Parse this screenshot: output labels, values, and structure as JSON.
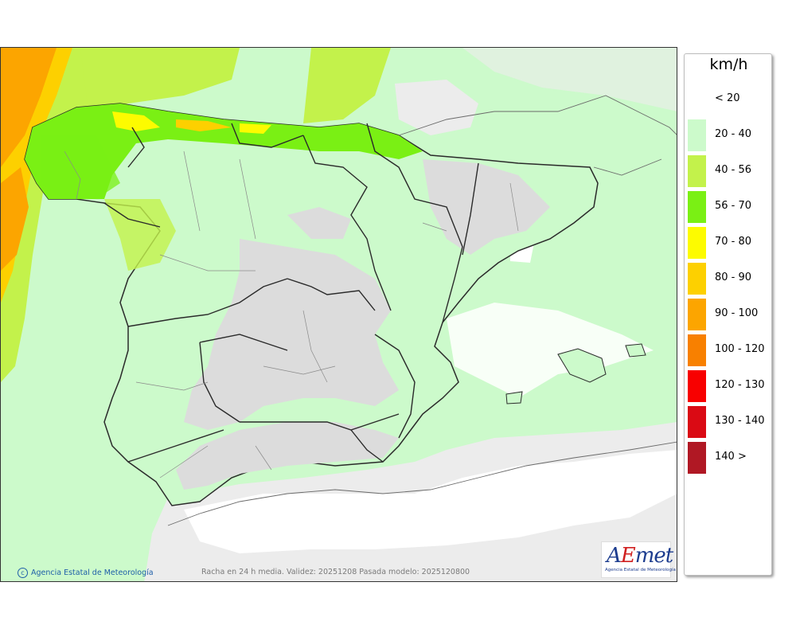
{
  "legend": {
    "unit": "km/h",
    "items": [
      {
        "label": "< 20",
        "color": "#ffffff"
      },
      {
        "label": "20 - 40",
        "color": "#ccfacb"
      },
      {
        "label": "40 - 56",
        "color": "#c3f24b"
      },
      {
        "label": "56 - 70",
        "color": "#7af014"
      },
      {
        "label": "70 - 80",
        "color": "#fdfb00"
      },
      {
        "label": "80 - 90",
        "color": "#fdd000"
      },
      {
        "label": "90 - 100",
        "color": "#fca500"
      },
      {
        "label": "100 - 120",
        "color": "#f88000"
      },
      {
        "label": "120 - 130",
        "color": "#f80000"
      },
      {
        "label": "130 - 140",
        "color": "#da0a14"
      },
      {
        "label": "140 >",
        "color": "#b01824"
      }
    ]
  },
  "footer": {
    "credit": "Agencia Estatal de Meteorología",
    "caption": "Racha en 24 h media. Validez: 20251208 Pasada modelo: 2025120800"
  },
  "logo": {
    "word_part1": "A",
    "word_part2": "E",
    "word_part3": "met",
    "subtitle": "Agencia Estatal de Meteorología"
  },
  "colors": {
    "sea_base": "#d9f7d5",
    "low_wind": "#ececec",
    "land_shade": "#dcdcdc",
    "border": "#2a2a2a"
  }
}
